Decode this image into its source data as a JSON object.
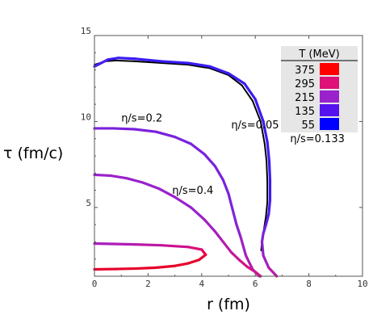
{
  "chart_data": {
    "type": "line",
    "title": "",
    "xlabel": "r (fm)",
    "ylabel": "τ (fm/c)",
    "xlim": [
      0,
      10
    ],
    "ylim": [
      1,
      15
    ],
    "xticks": [
      "0",
      "2",
      "4",
      "6",
      "8",
      "10"
    ],
    "yticks": [
      "5",
      "10",
      "15"
    ],
    "grid": false,
    "legend": {
      "title": "T (MeV)",
      "placement": "top-right",
      "entries": [
        {
          "label": "375",
          "color": "#ff0000"
        },
        {
          "label": "295",
          "color": "#dd1177"
        },
        {
          "label": "215",
          "color": "#9922cc"
        },
        {
          "label": "135",
          "color": "#5511ee"
        },
        {
          "label": "55",
          "color": "#0000ff"
        }
      ]
    },
    "annotations": [
      {
        "text": "η/s=0.2",
        "x": 1.0,
        "y": 10.0
      },
      {
        "text": "η/s=0.05",
        "x": 5.1,
        "y": 9.6
      },
      {
        "text": "η/s=0.133",
        "x": 7.3,
        "y": 8.8
      },
      {
        "text": "η/s=0.4",
        "x": 2.9,
        "y": 5.8
      }
    ],
    "series": [
      {
        "name": "η/s=0.4",
        "x": [
          0.0,
          0.8,
          1.6,
          2.3,
          3.0,
          3.5,
          3.9,
          4.15,
          4.0,
          3.5,
          2.5,
          1.5,
          0.7,
          0.0
        ],
        "y": [
          1.4,
          1.42,
          1.45,
          1.5,
          1.6,
          1.75,
          1.95,
          2.25,
          2.55,
          2.7,
          2.8,
          2.85,
          2.88,
          2.9
        ],
        "colors": [
          "#e8002a",
          "#e8002a",
          "#e8002a",
          "#e8002a",
          "#e8002a",
          "#e8002a",
          "#e80030",
          "#ee0044",
          "#dd1177",
          "#cc1190",
          "#bb1aa6",
          "#b01cb4",
          "#a81ebc",
          "#a020c0"
        ]
      },
      {
        "name": "η/s=0.2",
        "x": [
          0.0,
          0.6,
          1.2,
          1.8,
          2.4,
          3.0,
          3.6,
          4.1,
          4.5,
          4.8,
          5.1,
          5.4,
          5.7,
          6.0,
          6.2
        ],
        "y": [
          6.9,
          6.85,
          6.7,
          6.45,
          6.1,
          5.6,
          5.0,
          4.3,
          3.6,
          3.0,
          2.4,
          1.95,
          1.55,
          1.25,
          1.0
        ],
        "colors": [
          "#9922cc",
          "#9922cc",
          "#9922cc",
          "#9922cc",
          "#9922cc",
          "#9922cc",
          "#9922cc",
          "#a020c0",
          "#aa1eb4",
          "#b51ca8",
          "#c0199a",
          "#cc168a",
          "#d6137c",
          "#de116e",
          "#e30e62"
        ]
      },
      {
        "name": "η/s=0.133",
        "x": [
          0.0,
          0.7,
          1.5,
          2.3,
          3.0,
          3.6,
          4.1,
          4.5,
          4.8,
          5.0,
          5.15,
          5.3,
          5.45,
          5.65,
          5.9,
          6.15
        ],
        "y": [
          9.6,
          9.6,
          9.55,
          9.4,
          9.1,
          8.7,
          8.1,
          7.4,
          6.6,
          5.8,
          4.9,
          4.0,
          3.3,
          2.2,
          1.4,
          1.0
        ],
        "colors": [
          "#7a22dd",
          "#7a22dd",
          "#7a22dd",
          "#7a22dd",
          "#7a22dd",
          "#7a22dd",
          "#7a22dd",
          "#7a22dd",
          "#7a22dd",
          "#7a22dd",
          "#8022d8",
          "#8a22cc",
          "#9c22c0",
          "#b21cb0",
          "#c8169c",
          "#d41488"
        ]
      },
      {
        "name": "η/s=0.05",
        "x": [
          0.0,
          0.4,
          0.8,
          1.5,
          2.5,
          3.5,
          4.3,
          5.0,
          5.5,
          5.9,
          6.2,
          6.35,
          6.42,
          6.45,
          6.45,
          6.4,
          6.35,
          6.3,
          6.25,
          6.22
        ],
        "y": [
          13.3,
          13.5,
          13.55,
          13.5,
          13.4,
          13.3,
          13.1,
          12.7,
          12.1,
          11.2,
          10.0,
          8.7,
          7.7,
          6.5,
          5.3,
          4.5,
          4.0,
          3.5,
          3.0,
          2.5
        ],
        "colors": [
          "#000000",
          "#000000",
          "#000000",
          "#000000",
          "#000000",
          "#000000",
          "#000000",
          "#000000",
          "#000000",
          "#000000",
          "#000000",
          "#000000",
          "#000000",
          "#000000",
          "#000000",
          "#000000",
          "#000000",
          "#000000",
          "#000000",
          "#000000"
        ]
      },
      {
        "name": "η/s=0.133",
        "x": [
          0.0,
          0.5,
          0.9,
          1.5,
          2.5,
          3.5,
          4.3,
          5.0,
          5.6,
          6.0,
          6.3,
          6.45,
          6.52,
          6.55,
          6.55,
          6.5,
          6.4,
          6.3,
          6.25,
          6.3,
          6.5,
          6.8
        ],
        "y": [
          13.2,
          13.6,
          13.7,
          13.65,
          13.5,
          13.4,
          13.2,
          12.8,
          12.2,
          11.3,
          10.0,
          8.8,
          7.7,
          6.6,
          5.4,
          4.6,
          4.0,
          3.5,
          3.0,
          2.2,
          1.5,
          1.0
        ],
        "colors": [
          "#4a1ef0",
          "#3a1cf4",
          "#3a1cf4",
          "#3a1cf4",
          "#3a1cf4",
          "#3a1cf4",
          "#3a1cf4",
          "#3a1cf4",
          "#3a1cf4",
          "#3a1cf4",
          "#3a1cf4",
          "#3a1cf4",
          "#3a1cf4",
          "#3a1cf4",
          "#4a1ef0",
          "#5a20e8",
          "#6a22e0",
          "#7a22d8",
          "#8a22cc",
          "#a020c0",
          "#b81cac",
          "#c81896"
        ]
      }
    ]
  }
}
